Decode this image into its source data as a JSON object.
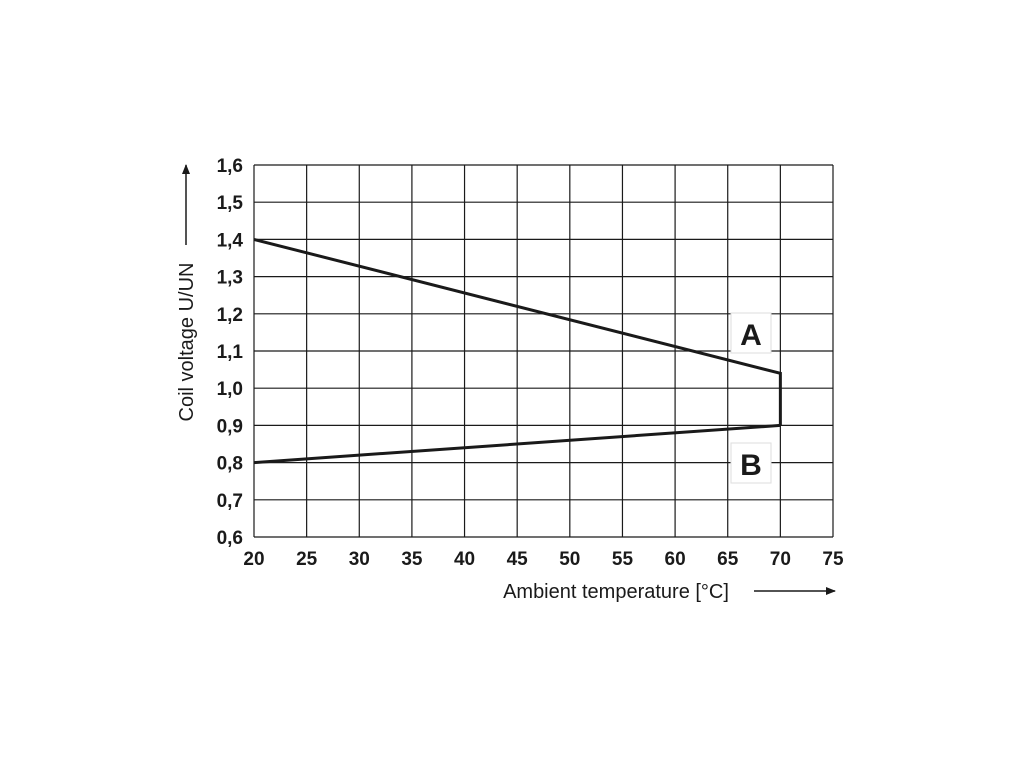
{
  "chart_data": {
    "type": "line",
    "xlabel": "Ambient temperature [°C]",
    "ylabel": "Coil voltage U/UN",
    "xlim": [
      20,
      75
    ],
    "ylim": [
      0.6,
      1.6
    ],
    "x_ticks": [
      "20",
      "25",
      "30",
      "35",
      "40",
      "45",
      "50",
      "55",
      "60",
      "65",
      "70",
      "75"
    ],
    "y_ticks": [
      "0,6",
      "0,7",
      "0,8",
      "0,9",
      "1,0",
      "1,1",
      "1,2",
      "1,3",
      "1,4",
      "1,5",
      "1,6"
    ],
    "grid": true,
    "series": [
      {
        "name": "A",
        "x": [
          20,
          70,
          70
        ],
        "y": [
          1.4,
          1.04,
          0.9
        ]
      },
      {
        "name": "B",
        "x": [
          20,
          70
        ],
        "y": [
          0.8,
          0.9
        ]
      }
    ],
    "colors": {
      "line": "#1a1a1a",
      "grid": "#1a1a1a"
    }
  }
}
